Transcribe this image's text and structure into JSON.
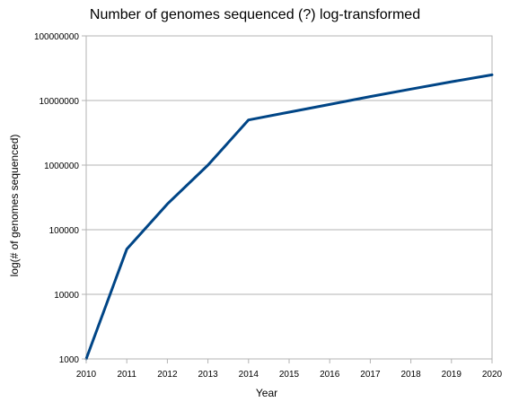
{
  "chart_data": {
    "type": "line",
    "title": "Number of genomes sequenced (?) log-transformed",
    "xlabel": "Year",
    "ylabel": "log(# of genomes sequenced)",
    "x": [
      2010,
      2011,
      2012,
      2013,
      2014,
      2015,
      2016,
      2017,
      2018,
      2019,
      2020
    ],
    "xlim": [
      2010,
      2020
    ],
    "y_scale": "log",
    "ylim": [
      1000,
      100000000
    ],
    "y_ticks": [
      "1000",
      "10000",
      "100000",
      "1000000",
      "10000000",
      "100000000"
    ],
    "x_ticks": [
      "2010",
      "2011",
      "2012",
      "2013",
      "2014",
      "2015",
      "2016",
      "2017",
      "2018",
      "2019",
      "2020"
    ],
    "grid": "horizontal",
    "series": [
      {
        "color": "#004586",
        "values": [
          1000,
          50000,
          250000,
          1000000,
          5000000,
          6600000,
          8700000,
          11500000,
          15000000,
          19500000,
          25000000
        ]
      }
    ]
  }
}
